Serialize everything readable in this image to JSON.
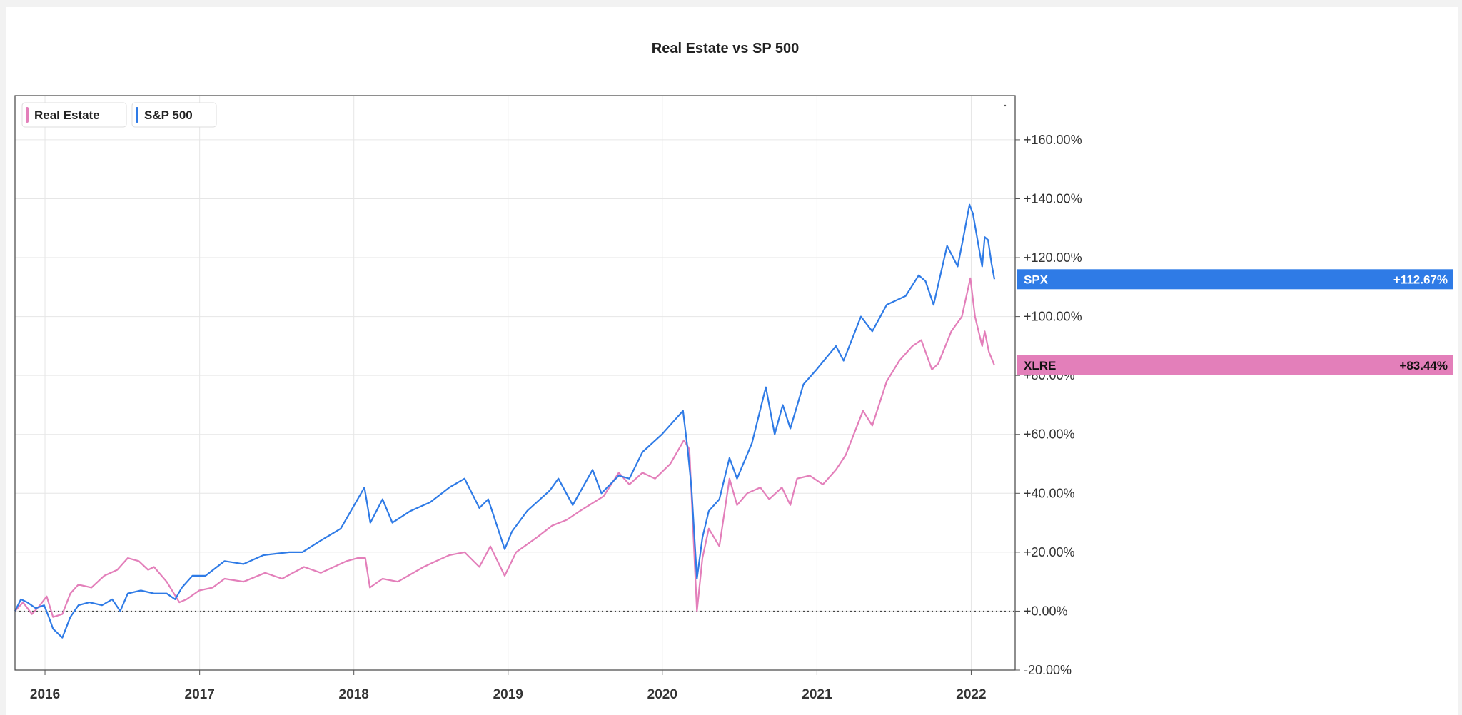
{
  "chart_data": {
    "type": "line",
    "title": "Real Estate vs SP 500",
    "xlabel": "",
    "ylabel": "",
    "x_tick_labels": [
      "2016",
      "2017",
      "2018",
      "2019",
      "2020",
      "2021",
      "2022"
    ],
    "y_tick_labels": [
      "+160.00%",
      "+140.00%",
      "+120.00%",
      "+100.00%",
      "+80.00%",
      "+60.00%",
      "+40.00%",
      "+20.00%",
      "+0.00%",
      "-20.00%"
    ],
    "xlim": [
      "2015-10-22",
      "2022-04-15"
    ],
    "ylim": [
      -20,
      175
    ],
    "grid": true,
    "legend_position": "top-left",
    "zero_line": "dotted",
    "legend": [
      {
        "label": "Real Estate",
        "color": "#e37fba"
      },
      {
        "label": "S&P 500",
        "color": "#2f7be6"
      }
    ],
    "series": [
      {
        "name": "S&P 500",
        "color": "#2f7be6",
        "end_tag": {
          "symbol": "SPX",
          "value": "+112.67%"
        },
        "points": [
          [
            "2015-10-22",
            0
          ],
          [
            "2015-11-05",
            4
          ],
          [
            "2015-11-20",
            3
          ],
          [
            "2015-12-10",
            1
          ],
          [
            "2015-12-30",
            2
          ],
          [
            "2016-01-10",
            -2
          ],
          [
            "2016-01-20",
            -6
          ],
          [
            "2016-02-11",
            -9
          ],
          [
            "2016-03-01",
            -2
          ],
          [
            "2016-03-20",
            2
          ],
          [
            "2016-04-15",
            3
          ],
          [
            "2016-05-15",
            2
          ],
          [
            "2016-06-08",
            4
          ],
          [
            "2016-06-27",
            0
          ],
          [
            "2016-07-15",
            6
          ],
          [
            "2016-08-15",
            7
          ],
          [
            "2016-09-15",
            6
          ],
          [
            "2016-10-15",
            6
          ],
          [
            "2016-11-04",
            4
          ],
          [
            "2016-11-20",
            8
          ],
          [
            "2016-12-15",
            12
          ],
          [
            "2017-01-15",
            12
          ],
          [
            "2017-03-01",
            17
          ],
          [
            "2017-04-15",
            16
          ],
          [
            "2017-06-01",
            19
          ],
          [
            "2017-08-01",
            20
          ],
          [
            "2017-09-01",
            20
          ],
          [
            "2017-10-15",
            24
          ],
          [
            "2017-12-01",
            28
          ],
          [
            "2018-01-26",
            42
          ],
          [
            "2018-02-09",
            30
          ],
          [
            "2018-03-10",
            38
          ],
          [
            "2018-04-02",
            30
          ],
          [
            "2018-05-15",
            34
          ],
          [
            "2018-07-01",
            37
          ],
          [
            "2018-08-15",
            42
          ],
          [
            "2018-09-20",
            45
          ],
          [
            "2018-10-25",
            35
          ],
          [
            "2018-11-15",
            38
          ],
          [
            "2018-12-24",
            21
          ],
          [
            "2019-01-10",
            27
          ],
          [
            "2019-02-15",
            34
          ],
          [
            "2019-04-10",
            41
          ],
          [
            "2019-04-30",
            45
          ],
          [
            "2019-06-03",
            36
          ],
          [
            "2019-07-20",
            48
          ],
          [
            "2019-08-10",
            40
          ],
          [
            "2019-09-20",
            46
          ],
          [
            "2019-10-15",
            45
          ],
          [
            "2019-11-15",
            54
          ],
          [
            "2019-12-31",
            60
          ],
          [
            "2020-02-19",
            68
          ],
          [
            "2020-03-01",
            55
          ],
          [
            "2020-03-10",
            42
          ],
          [
            "2020-03-23",
            11
          ],
          [
            "2020-04-05",
            25
          ],
          [
            "2020-04-20",
            34
          ],
          [
            "2020-05-15",
            38
          ],
          [
            "2020-06-08",
            52
          ],
          [
            "2020-06-26",
            45
          ],
          [
            "2020-07-31",
            57
          ],
          [
            "2020-09-02",
            76
          ],
          [
            "2020-09-23",
            60
          ],
          [
            "2020-10-12",
            70
          ],
          [
            "2020-10-30",
            62
          ],
          [
            "2020-11-30",
            77
          ],
          [
            "2020-12-31",
            82
          ],
          [
            "2021-02-15",
            90
          ],
          [
            "2021-03-05",
            85
          ],
          [
            "2021-04-15",
            100
          ],
          [
            "2021-05-12",
            95
          ],
          [
            "2021-06-15",
            104
          ],
          [
            "2021-07-30",
            107
          ],
          [
            "2021-08-30",
            114
          ],
          [
            "2021-09-15",
            112
          ],
          [
            "2021-10-04",
            104
          ],
          [
            "2021-11-05",
            124
          ],
          [
            "2021-11-30",
            117
          ],
          [
            "2021-12-15",
            128
          ],
          [
            "2021-12-28",
            138
          ],
          [
            "2022-01-05",
            135
          ],
          [
            "2022-01-27",
            117
          ],
          [
            "2022-02-02",
            127
          ],
          [
            "2022-02-10",
            126
          ],
          [
            "2022-02-18",
            118
          ],
          [
            "2022-02-25",
            112.67
          ]
        ]
      },
      {
        "name": "Real Estate",
        "color": "#e37fba",
        "end_tag": {
          "symbol": "XLRE",
          "value": "+83.44%"
        },
        "points": [
          [
            "2015-10-22",
            0
          ],
          [
            "2015-11-10",
            3
          ],
          [
            "2015-12-01",
            -1
          ],
          [
            "2015-12-20",
            2
          ],
          [
            "2016-01-05",
            5
          ],
          [
            "2016-01-20",
            -2
          ],
          [
            "2016-02-11",
            -1
          ],
          [
            "2016-03-01",
            6
          ],
          [
            "2016-03-20",
            9
          ],
          [
            "2016-04-20",
            8
          ],
          [
            "2016-05-20",
            12
          ],
          [
            "2016-06-20",
            14
          ],
          [
            "2016-07-15",
            18
          ],
          [
            "2016-08-10",
            17
          ],
          [
            "2016-09-01",
            14
          ],
          [
            "2016-09-15",
            15
          ],
          [
            "2016-10-15",
            10
          ],
          [
            "2016-11-14",
            3
          ],
          [
            "2016-12-01",
            4
          ],
          [
            "2016-12-31",
            7
          ],
          [
            "2017-02-01",
            8
          ],
          [
            "2017-03-01",
            11
          ],
          [
            "2017-04-15",
            10
          ],
          [
            "2017-06-05",
            13
          ],
          [
            "2017-07-15",
            11
          ],
          [
            "2017-09-05",
            15
          ],
          [
            "2017-10-15",
            13
          ],
          [
            "2017-12-15",
            17
          ],
          [
            "2018-01-10",
            18
          ],
          [
            "2018-01-28",
            18
          ],
          [
            "2018-02-08",
            8
          ],
          [
            "2018-03-10",
            11
          ],
          [
            "2018-04-15",
            10
          ],
          [
            "2018-06-15",
            15
          ],
          [
            "2018-07-15",
            17
          ],
          [
            "2018-08-15",
            19
          ],
          [
            "2018-09-20",
            20
          ],
          [
            "2018-10-25",
            15
          ],
          [
            "2018-11-20",
            22
          ],
          [
            "2018-12-24",
            12
          ],
          [
            "2019-01-20",
            20
          ],
          [
            "2019-03-10",
            25
          ],
          [
            "2019-04-15",
            29
          ],
          [
            "2019-05-20",
            31
          ],
          [
            "2019-06-20",
            34
          ],
          [
            "2019-08-15",
            39
          ],
          [
            "2019-09-20",
            47
          ],
          [
            "2019-10-15",
            43
          ],
          [
            "2019-11-15",
            47
          ],
          [
            "2019-12-15",
            45
          ],
          [
            "2020-01-20",
            50
          ],
          [
            "2020-02-21",
            58
          ],
          [
            "2020-03-05",
            55
          ],
          [
            "2020-03-10",
            40
          ],
          [
            "2020-03-23",
            0
          ],
          [
            "2020-04-05",
            18
          ],
          [
            "2020-04-20",
            28
          ],
          [
            "2020-05-15",
            22
          ],
          [
            "2020-06-08",
            45
          ],
          [
            "2020-06-26",
            36
          ],
          [
            "2020-07-20",
            40
          ],
          [
            "2020-08-20",
            42
          ],
          [
            "2020-09-10",
            38
          ],
          [
            "2020-10-10",
            42
          ],
          [
            "2020-10-30",
            36
          ],
          [
            "2020-11-15",
            45
          ],
          [
            "2020-12-15",
            46
          ],
          [
            "2021-01-15",
            43
          ],
          [
            "2021-02-15",
            48
          ],
          [
            "2021-03-10",
            53
          ],
          [
            "2021-04-20",
            68
          ],
          [
            "2021-05-12",
            63
          ],
          [
            "2021-06-15",
            78
          ],
          [
            "2021-07-15",
            85
          ],
          [
            "2021-08-15",
            90
          ],
          [
            "2021-09-05",
            92
          ],
          [
            "2021-09-30",
            82
          ],
          [
            "2021-10-15",
            84
          ],
          [
            "2021-11-15",
            95
          ],
          [
            "2021-12-10",
            100
          ],
          [
            "2021-12-30",
            113
          ],
          [
            "2022-01-10",
            100
          ],
          [
            "2022-01-27",
            90
          ],
          [
            "2022-02-02",
            95
          ],
          [
            "2022-02-12",
            88
          ],
          [
            "2022-02-25",
            83.44
          ]
        ]
      }
    ]
  }
}
